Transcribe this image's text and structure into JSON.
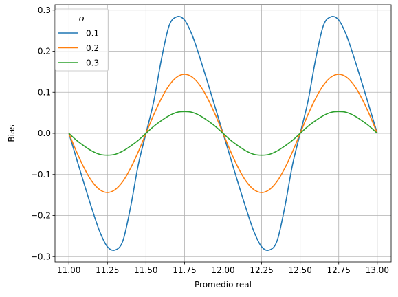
{
  "chart_data": {
    "type": "line",
    "xlabel": "Promedio real",
    "ylabel": "Bias",
    "xlim": [
      10.91,
      13.09
    ],
    "ylim": [
      -0.313,
      0.313
    ],
    "xticks": [
      11.0,
      11.25,
      11.5,
      11.75,
      12.0,
      12.25,
      12.5,
      12.75,
      13.0
    ],
    "xtick_labels": [
      "11.00",
      "11.25",
      "11.50",
      "11.75",
      "12.00",
      "12.25",
      "12.50",
      "12.75",
      "13.00"
    ],
    "yticks": [
      -0.3,
      -0.2,
      -0.1,
      0.0,
      0.1,
      0.2,
      0.3
    ],
    "ytick_labels": [
      "−0.3",
      "−0.2",
      "−0.1",
      "0.0",
      "0.1",
      "0.2",
      "0.3"
    ],
    "grid": true,
    "legend": {
      "title": "σ",
      "position": "top-left"
    },
    "x": [
      11.0,
      11.05,
      11.1,
      11.15,
      11.2,
      11.25,
      11.3,
      11.35,
      11.4,
      11.45,
      11.5,
      11.55,
      11.6,
      11.65,
      11.7,
      11.75,
      11.8,
      11.85,
      11.9,
      11.95,
      12.0,
      12.05,
      12.1,
      12.15,
      12.2,
      12.25,
      12.3,
      12.35,
      12.4,
      12.45,
      12.5,
      12.55,
      12.6,
      12.65,
      12.7,
      12.75,
      12.8,
      12.85,
      12.9,
      12.95,
      13.0
    ],
    "series": [
      {
        "name": "0.1",
        "color": "#1f77b4",
        "values": [
          0.0,
          -0.062,
          -0.124,
          -0.184,
          -0.239,
          -0.276,
          -0.284,
          -0.262,
          -0.18,
          -0.077,
          0.0,
          0.077,
          0.18,
          0.262,
          0.284,
          0.276,
          0.239,
          0.184,
          0.124,
          0.062,
          0.0,
          -0.062,
          -0.124,
          -0.184,
          -0.239,
          -0.276,
          -0.284,
          -0.262,
          -0.18,
          -0.077,
          0.0,
          0.077,
          0.18,
          0.262,
          0.284,
          0.276,
          0.239,
          0.184,
          0.124,
          0.062,
          0.0
        ]
      },
      {
        "name": "0.2",
        "color": "#ff7f0e",
        "values": [
          0.0,
          -0.045,
          -0.085,
          -0.117,
          -0.137,
          -0.144,
          -0.137,
          -0.117,
          -0.085,
          -0.045,
          0.0,
          0.045,
          0.085,
          0.117,
          0.137,
          0.144,
          0.137,
          0.117,
          0.085,
          0.045,
          0.0,
          -0.045,
          -0.085,
          -0.117,
          -0.137,
          -0.144,
          -0.137,
          -0.117,
          -0.085,
          -0.045,
          0.0,
          0.045,
          0.085,
          0.117,
          0.137,
          0.144,
          0.137,
          0.117,
          0.085,
          0.045,
          0.0
        ]
      },
      {
        "name": "0.3",
        "color": "#2ca02c",
        "values": [
          0.0,
          -0.017,
          -0.031,
          -0.043,
          -0.051,
          -0.053,
          -0.051,
          -0.043,
          -0.031,
          -0.017,
          0.0,
          0.017,
          0.031,
          0.043,
          0.051,
          0.053,
          0.051,
          0.043,
          0.031,
          0.017,
          0.0,
          -0.017,
          -0.031,
          -0.043,
          -0.051,
          -0.053,
          -0.051,
          -0.043,
          -0.031,
          -0.017,
          0.0,
          0.017,
          0.031,
          0.043,
          0.051,
          0.053,
          0.051,
          0.043,
          0.031,
          0.017,
          0.0
        ]
      }
    ]
  }
}
